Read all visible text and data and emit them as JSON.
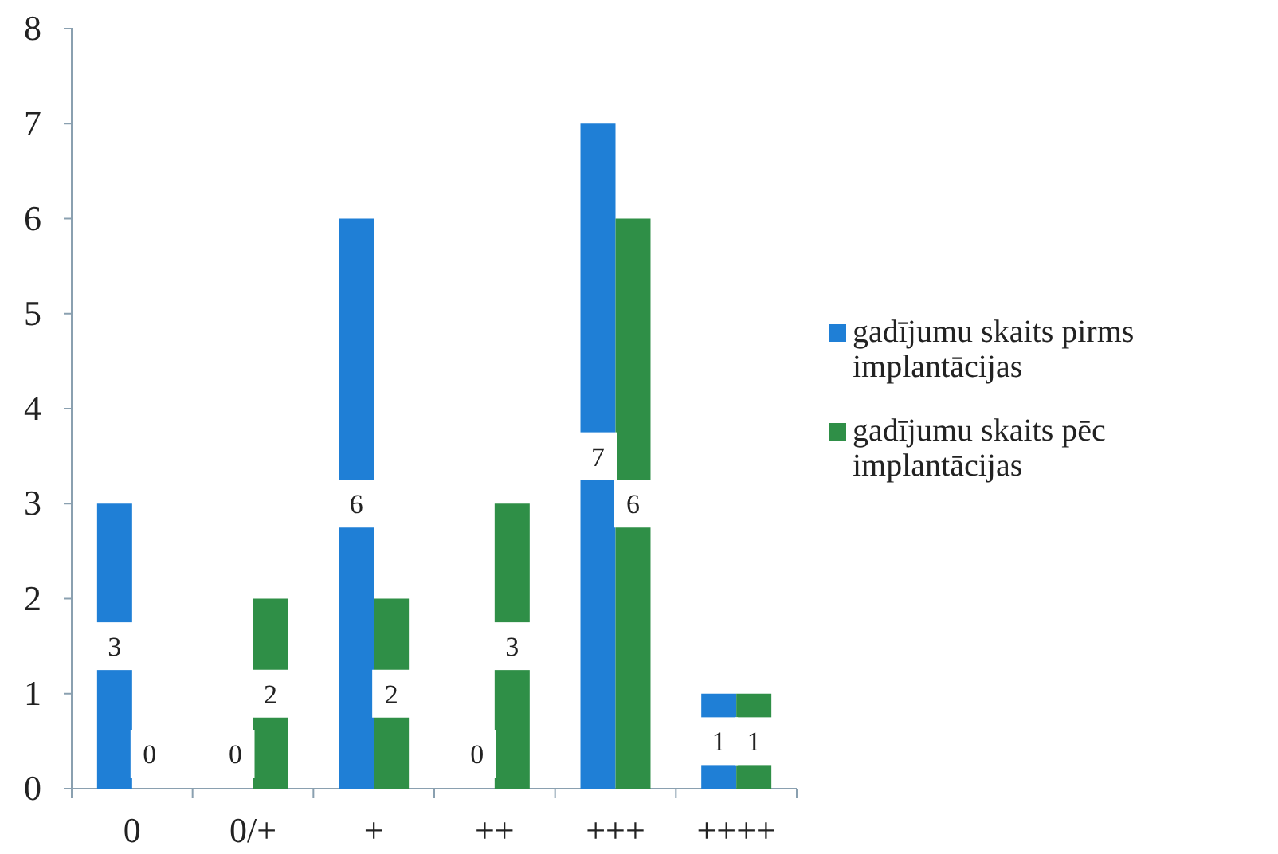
{
  "chart_data": {
    "type": "bar",
    "categories": [
      "0",
      "0/+",
      "+",
      "++",
      "+++",
      "++++"
    ],
    "series": [
      {
        "name": "gadījumu skaits pirms implantācijas",
        "color": "#1f7fd6",
        "values": [
          3,
          0,
          6,
          0,
          7,
          1
        ]
      },
      {
        "name": "gadījumu skaits pēc implantācijas",
        "color": "#2f8f47",
        "values": [
          0,
          2,
          2,
          3,
          6,
          1
        ]
      }
    ],
    "ylim": [
      0,
      8
    ],
    "yticks": [
      0,
      1,
      2,
      3,
      4,
      5,
      6,
      7,
      8
    ],
    "data_labels": true,
    "legend": "right"
  }
}
